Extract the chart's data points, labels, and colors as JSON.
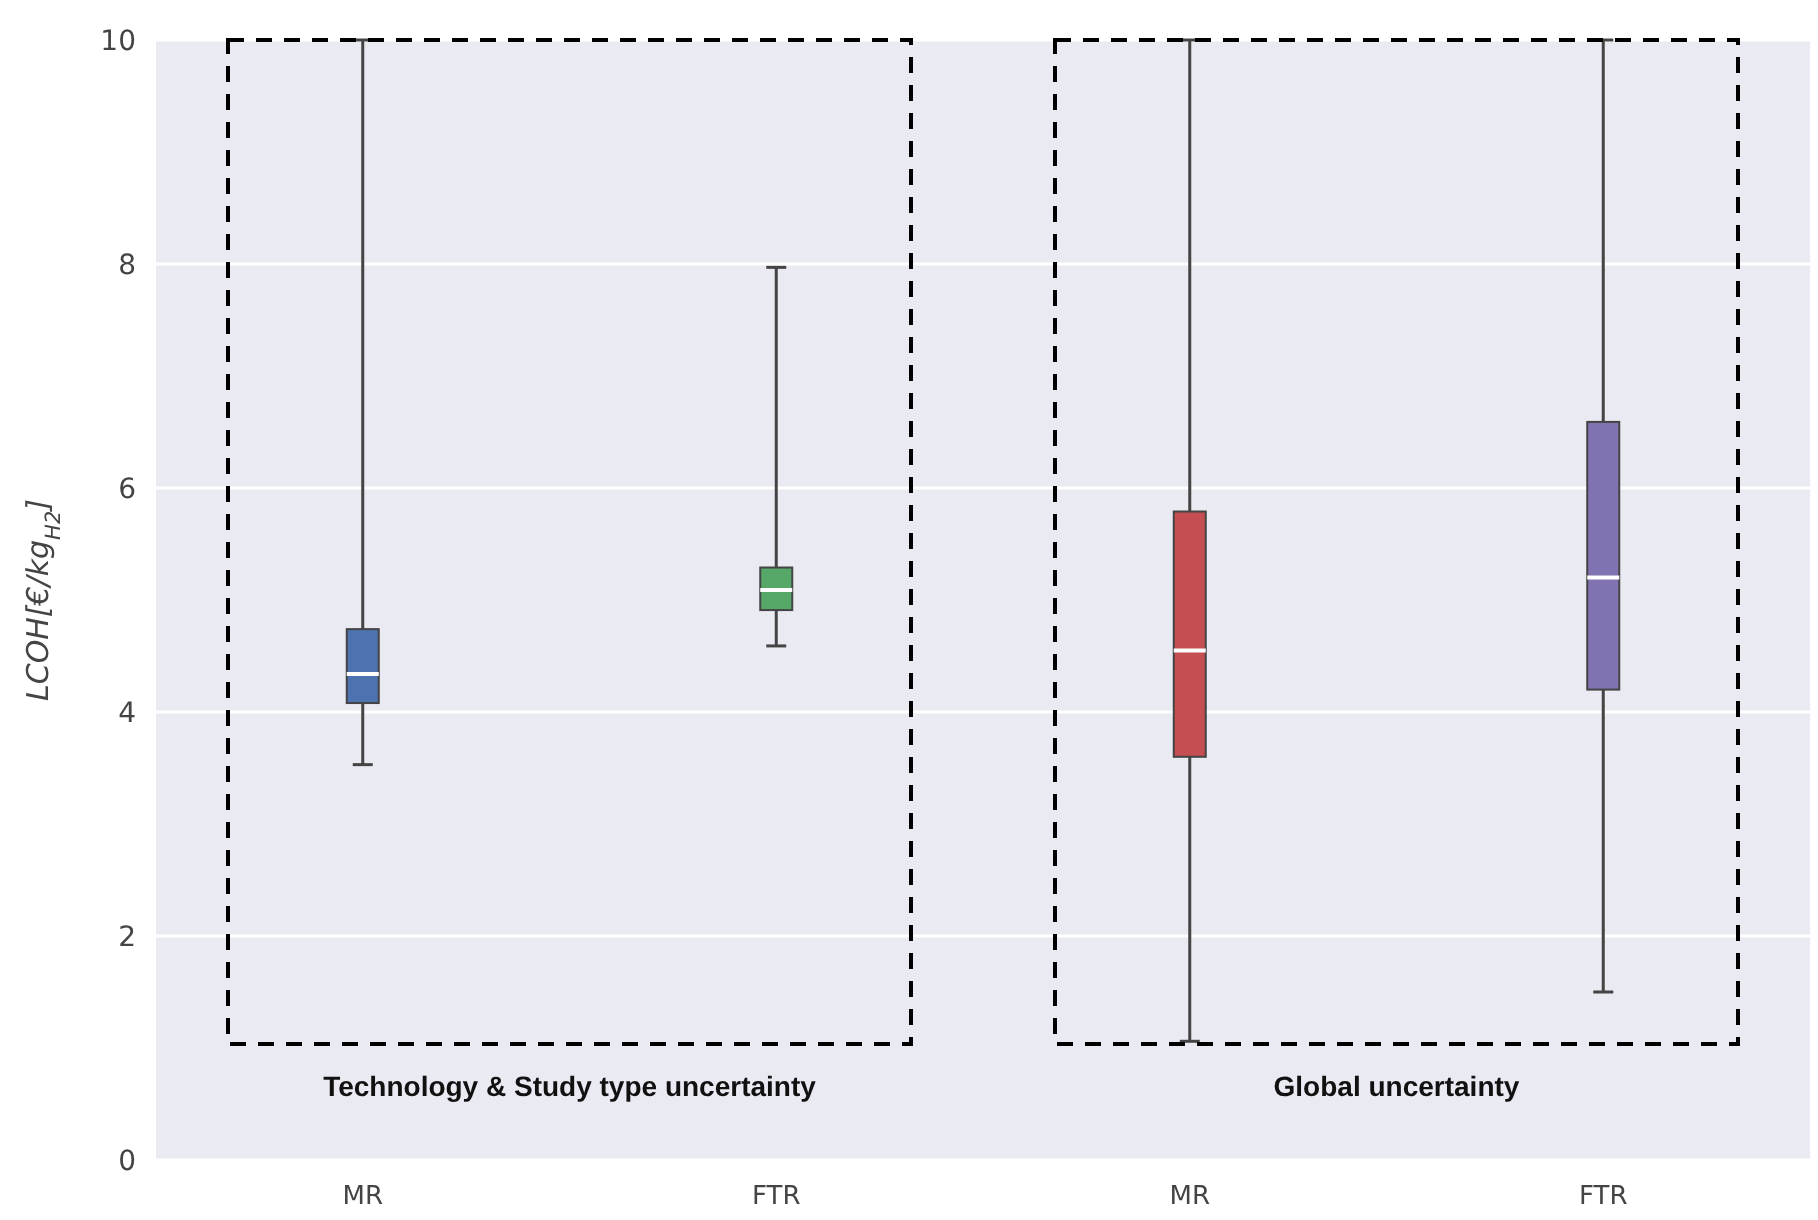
{
  "chart_data": {
    "type": "box",
    "ylabel": "LCOH[€/kg$_{H2}$]",
    "categories": [
      "MR",
      "FTR",
      "MR",
      "FTR"
    ],
    "colors": [
      "#4c72b0",
      "#55a868",
      "#c44e52",
      "#8172b2"
    ],
    "boxes": [
      {
        "low": 3.53,
        "q1": 4.08,
        "median": 4.34,
        "q3": 4.74,
        "high": 10
      },
      {
        "low": 4.59,
        "q1": 4.91,
        "median": 5.09,
        "q3": 5.29,
        "high": 7.97
      },
      {
        "low": 1.06,
        "q1": 3.6,
        "median": 4.55,
        "q3": 5.79,
        "high": 10
      },
      {
        "low": 1.5,
        "q1": 4.2,
        "median": 5.2,
        "q3": 6.59,
        "high": 10
      }
    ],
    "ylim": [
      0,
      10
    ],
    "yticks": [
      0,
      2,
      4,
      6,
      8,
      10
    ],
    "grid": "y",
    "annotations": [
      "Technology & Study type uncertainty",
      "Global uncertainty"
    ]
  }
}
